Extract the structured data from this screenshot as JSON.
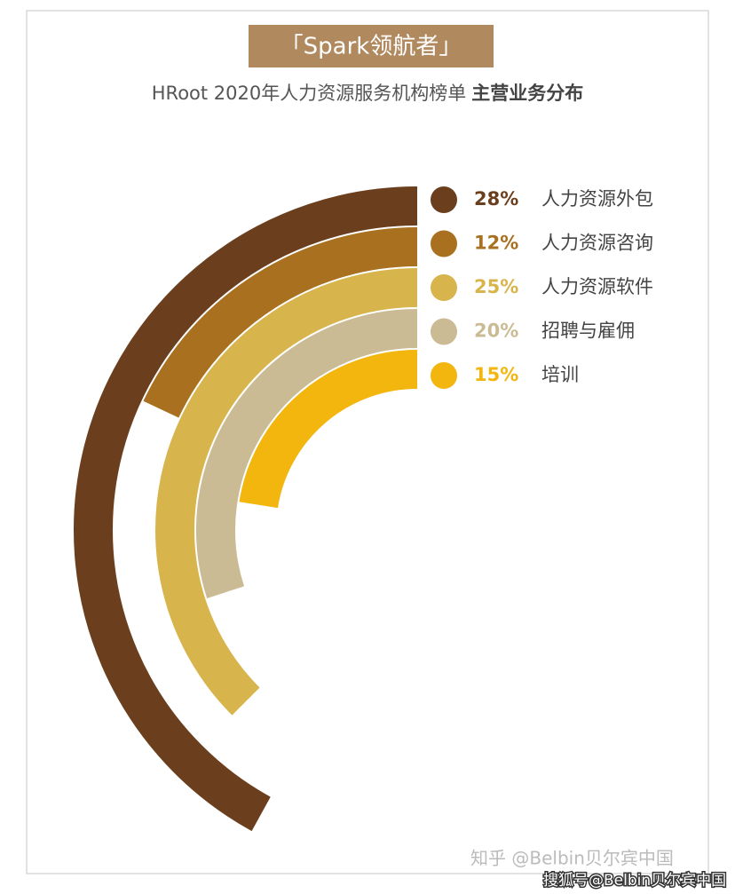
{
  "chart_data": {
    "type": "radial-bar",
    "title": "「Spark领航者」",
    "subtitle": "HRoot 2020年人力资源服务机构榜单",
    "subtitle_emphasis": "主营业务分布",
    "categories": [
      "人力资源外包",
      "人力资源咨询",
      "人力资源软件",
      "招聘与雇佣",
      "培训"
    ],
    "values": [
      28,
      12,
      25,
      20,
      15
    ],
    "value_labels": [
      "28%",
      "12%",
      "25%",
      "20%",
      "15%"
    ],
    "colors": [
      "#6b3f1e",
      "#a8701f",
      "#d8b44c",
      "#cbbb95",
      "#f2b60f"
    ]
  },
  "watermarks": [
    "知乎 @Belbin贝尔宾中国",
    "搜狐号@Belbin贝尔宾中国"
  ]
}
